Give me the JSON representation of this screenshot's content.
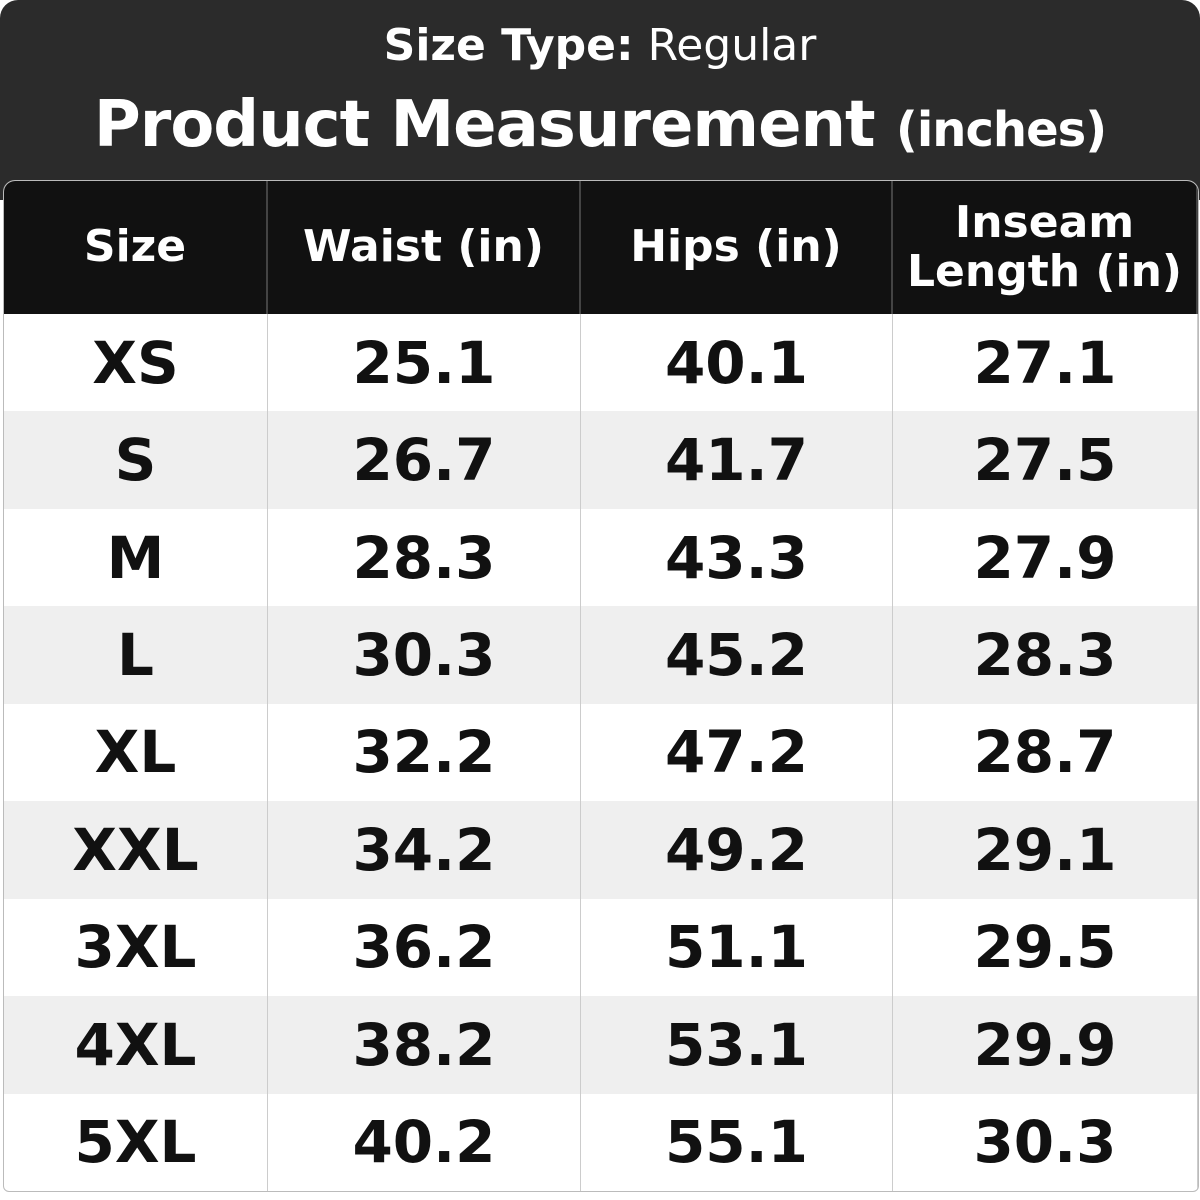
{
  "header": {
    "size_type_label": "Size Type:",
    "size_type_value": "Regular",
    "title": "Product Measurement",
    "unit": "(inches)"
  },
  "table": {
    "columns": [
      "Size",
      "Waist (in)",
      "Hips (in)",
      "Inseam Length (in)"
    ],
    "rows": [
      [
        "XS",
        "25.1",
        "40.1",
        "27.1"
      ],
      [
        "S",
        "26.7",
        "41.7",
        "27.5"
      ],
      [
        "M",
        "28.3",
        "43.3",
        "27.9"
      ],
      [
        "L",
        "30.3",
        "45.2",
        "28.3"
      ],
      [
        "XL",
        "32.2",
        "47.2",
        "28.7"
      ],
      [
        "XXL",
        "34.2",
        "49.2",
        "29.1"
      ],
      [
        "3XL",
        "36.2",
        "51.1",
        "29.5"
      ],
      [
        "4XL",
        "38.2",
        "53.1",
        "29.9"
      ],
      [
        "5XL",
        "40.2",
        "55.1",
        "30.3"
      ]
    ]
  }
}
